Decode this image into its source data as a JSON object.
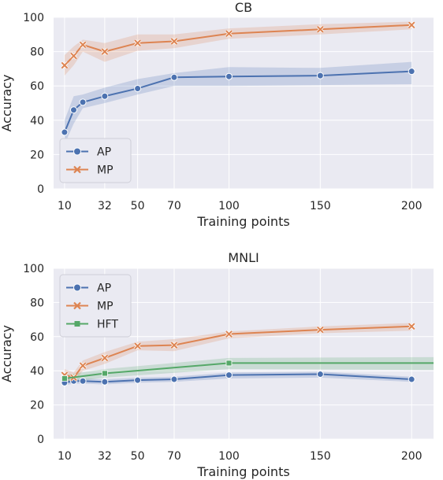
{
  "chart_data": [
    {
      "type": "line",
      "title": "CB",
      "xlabel": "Training points",
      "ylabel": "Accuracy",
      "xlim": [
        4,
        212
      ],
      "ylim": [
        0,
        100
      ],
      "xticks": [
        10,
        32,
        50,
        70,
        100,
        150,
        200
      ],
      "yticks": [
        0,
        20,
        40,
        60,
        80,
        100
      ],
      "grid": true,
      "legend_position": "lower-left",
      "series": [
        {
          "name": "AP",
          "color": "#4c72b0",
          "marker": "circle",
          "x": [
            10,
            15,
            20,
            32,
            50,
            70,
            100,
            150,
            200
          ],
          "y": [
            33,
            46,
            50.5,
            54,
            58.5,
            65,
            65.5,
            66,
            68.5
          ],
          "ci_low": [
            26,
            38,
            47,
            50,
            55,
            60,
            60,
            60.5,
            61
          ],
          "ci_high": [
            40,
            54,
            55,
            59,
            64,
            67.5,
            71,
            70.5,
            74
          ]
        },
        {
          "name": "MP",
          "color": "#dd8452",
          "marker": "x",
          "x": [
            10,
            15,
            20,
            32,
            50,
            70,
            100,
            150,
            200
          ],
          "y": [
            72,
            77.5,
            84,
            80,
            85,
            86,
            90.5,
            93,
            95.5
          ],
          "ci_low": [
            66,
            72,
            80,
            74,
            80.5,
            82,
            87.5,
            90,
            93
          ],
          "ci_high": [
            78,
            83,
            87,
            85,
            90,
            90,
            93.5,
            96,
            97.5
          ]
        }
      ]
    },
    {
      "type": "line",
      "title": "MNLI",
      "xlabel": "Training points",
      "ylabel": "Accuracy",
      "xlim": [
        4,
        212
      ],
      "ylim": [
        0,
        100
      ],
      "xticks": [
        10,
        32,
        50,
        70,
        100,
        150,
        200
      ],
      "yticks": [
        0,
        20,
        40,
        60,
        80,
        100
      ],
      "grid": true,
      "legend_position": "upper-left",
      "series": [
        {
          "name": "AP",
          "color": "#4c72b0",
          "marker": "circle",
          "x": [
            10,
            15,
            20,
            32,
            50,
            70,
            100,
            150,
            200
          ],
          "y": [
            33,
            34,
            34,
            33.5,
            34.5,
            35,
            37.5,
            38,
            35
          ],
          "ci_low": [
            31.5,
            32.5,
            32.5,
            32,
            33,
            33.5,
            35.5,
            36,
            33.5
          ],
          "ci_high": [
            34.5,
            35.5,
            35.5,
            35,
            36,
            36.5,
            39,
            39.5,
            36.5
          ]
        },
        {
          "name": "MP",
          "color": "#dd8452",
          "marker": "x",
          "x": [
            10,
            15,
            20,
            32,
            50,
            70,
            100,
            150,
            200
          ],
          "y": [
            37.5,
            36,
            43,
            47.5,
            54.5,
            55,
            61.5,
            64,
            66
          ],
          "ci_low": [
            34,
            33,
            40,
            44,
            52,
            51.5,
            59,
            62,
            63.5
          ],
          "ci_high": [
            41,
            39,
            46,
            51,
            57,
            58.5,
            63,
            66,
            68
          ]
        },
        {
          "name": "HFT",
          "color": "#55a868",
          "marker": "square",
          "x": [
            10,
            32,
            100,
            212
          ],
          "y": [
            35.5,
            38.5,
            44.5,
            44.5
          ],
          "ci_low": [
            33,
            36,
            41,
            40.5
          ],
          "ci_high": [
            37.5,
            41,
            47.5,
            48
          ]
        }
      ]
    }
  ]
}
